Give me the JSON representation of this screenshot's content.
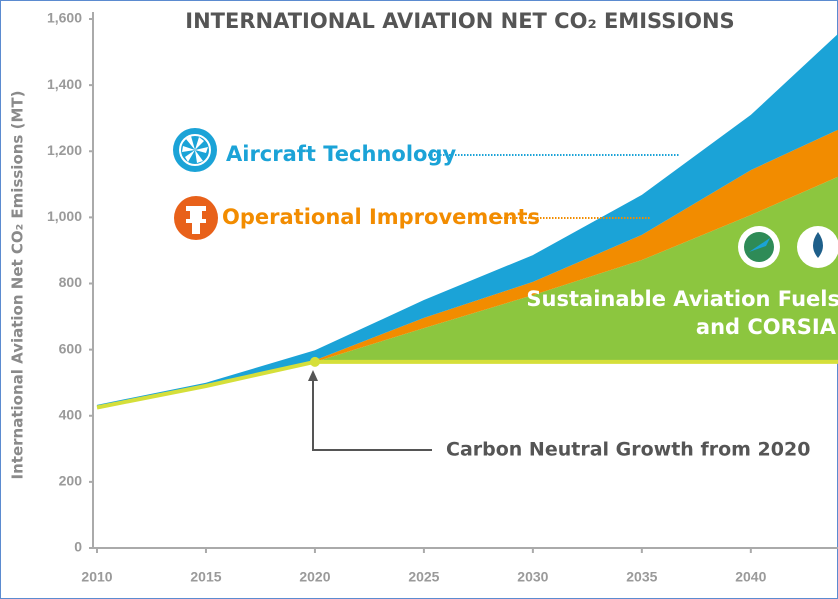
{
  "chart_data": {
    "type": "stacked_area",
    "title": "INTERNATIONAL AVIATION NET CO₂ EMISSIONS",
    "ylabel": "International Aviation Net CO₂ Emissions (MT)",
    "annotation": "Carbon Neutral Growth from 2020",
    "x": [
      2010,
      2015,
      2020,
      2025,
      2030,
      2035,
      2040,
      2044
    ],
    "xlim": [
      2010,
      2044
    ],
    "xticks": [
      2010,
      2015,
      2020,
      2025,
      2030,
      2035,
      2040
    ],
    "ylim": [
      0,
      1600
    ],
    "yticks": [
      0,
      200,
      400,
      600,
      800,
      {
        "value": 1000,
        "label": "1,000"
      },
      {
        "value": 1200,
        "label": "1,200"
      },
      {
        "value": 1400,
        "label": "1,400"
      },
      {
        "value": 1600,
        "label": "1,600"
      }
    ],
    "baseline": {
      "color": "#d5df3a",
      "values": [
        425,
        490,
        563,
        563,
        563,
        563,
        563,
        563
      ]
    },
    "series": [
      {
        "name_lines": [
          "Sustainable Aviation Fuels",
          "and CORSIA"
        ],
        "color": "#8cc63f",
        "values": [
          0,
          0,
          0,
          102,
          202,
          308,
          444,
          560
        ]
      },
      {
        "name": "Operational Improvements",
        "color": "#f28c00",
        "values": [
          0,
          0,
          5,
          31,
          40,
          76,
          136,
          142
        ]
      },
      {
        "name": "Aircraft Technology",
        "color": "#1ba3d7",
        "values": [
          8,
          10,
          30,
          54,
          81,
          121,
          167,
          290
        ]
      }
    ]
  }
}
